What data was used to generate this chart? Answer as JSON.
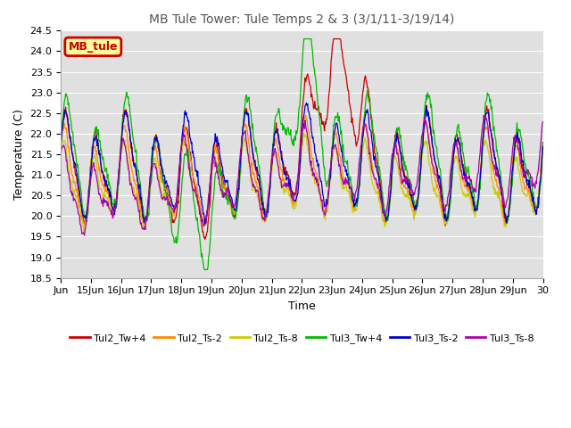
{
  "title": "MB Tule Tower: Tule Temps 2 & 3 (3/1/11-3/19/14)",
  "xlabel": "Time",
  "ylabel": "Temperature (C)",
  "ylim": [
    18.5,
    24.5
  ],
  "yticks": [
    18.5,
    19.0,
    19.5,
    20.0,
    20.5,
    21.0,
    21.5,
    22.0,
    22.5,
    23.0,
    23.5,
    24.0,
    24.5
  ],
  "xtick_labels": [
    "Jun",
    "15Jun",
    "16Jun",
    "17Jun",
    "18Jun",
    "19Jun",
    "20Jun",
    "21Jun",
    "22Jun",
    "23Jun",
    "24Jun",
    "25Jun",
    "26Jun",
    "27Jun",
    "28Jun",
    "29Jun",
    "30"
  ],
  "legend_labels": [
    "Tul2_Tw+4",
    "Tul2_Ts-2",
    "Tul2_Ts-8",
    "Tul3_Tw+4",
    "Tul3_Ts-2",
    "Tul3_Ts-8"
  ],
  "line_colors": [
    "#cc0000",
    "#ff8800",
    "#cccc00",
    "#00bb00",
    "#0000cc",
    "#aa00aa"
  ],
  "box_label": "MB_tule",
  "box_color": "#cc0000",
  "box_bg": "#ffff99",
  "background_color": "#e0e0e0",
  "n_points": 800
}
